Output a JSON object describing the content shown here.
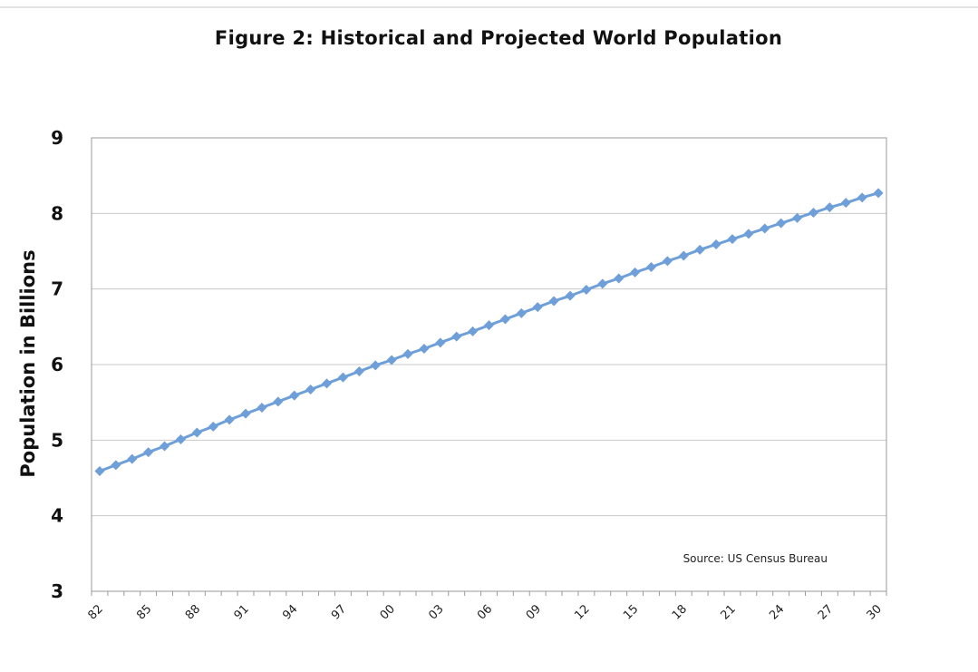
{
  "chart_data": {
    "type": "line",
    "title": "Figure 2: Historical and Projected World Population",
    "xlabel": "",
    "ylabel": "Population in Billions",
    "ylim": [
      3,
      9
    ],
    "yticks": [
      "3",
      "4",
      "5",
      "6",
      "7",
      "8",
      "9"
    ],
    "xtick_labels": [
      "82",
      "85",
      "88",
      "91",
      "94",
      "97",
      "00",
      "03",
      "06",
      "09",
      "12",
      "15",
      "18",
      "21",
      "24",
      "27",
      "30"
    ],
    "x_start_year": 1982,
    "x_end_year": 2030,
    "grid": true,
    "annotation": "Source: US Census Bureau",
    "series": [
      {
        "color": "#6f9fd8",
        "marker": "diamond",
        "x": [
          1982,
          1983,
          1984,
          1985,
          1986,
          1987,
          1988,
          1989,
          1990,
          1991,
          1992,
          1993,
          1994,
          1995,
          1996,
          1997,
          1998,
          1999,
          2000,
          2001,
          2002,
          2003,
          2004,
          2005,
          2006,
          2007,
          2008,
          2009,
          2010,
          2011,
          2012,
          2013,
          2014,
          2015,
          2016,
          2017,
          2018,
          2019,
          2020,
          2021,
          2022,
          2023,
          2024,
          2025,
          2026,
          2027,
          2028,
          2029,
          2030
        ],
        "values": [
          4.59,
          4.67,
          4.75,
          4.84,
          4.92,
          5.01,
          5.1,
          5.18,
          5.27,
          5.35,
          5.43,
          5.51,
          5.59,
          5.67,
          5.75,
          5.83,
          5.91,
          5.99,
          6.06,
          6.14,
          6.21,
          6.29,
          6.37,
          6.44,
          6.52,
          6.6,
          6.68,
          6.76,
          6.84,
          6.91,
          6.99,
          7.07,
          7.14,
          7.22,
          7.29,
          7.37,
          7.44,
          7.52,
          7.59,
          7.66,
          7.73,
          7.8,
          7.87,
          7.94,
          8.01,
          8.08,
          8.14,
          8.21,
          8.27
        ]
      }
    ]
  }
}
